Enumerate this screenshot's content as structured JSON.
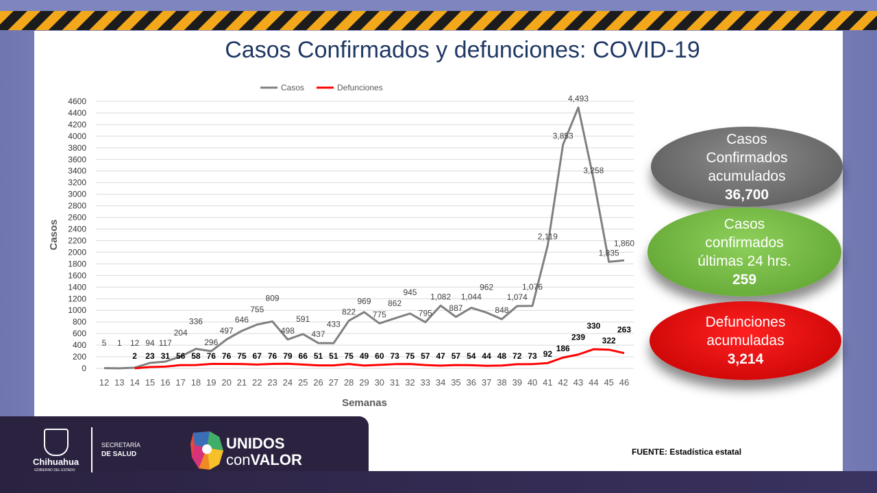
{
  "slide": {
    "title": "Casos Confirmados y defunciones: COVID-19",
    "fuente": "FUENTE: Estadística estatal"
  },
  "bubbles": {
    "acumulados": {
      "label1": "Casos",
      "label2": "Confirmados",
      "label3": "acumulados",
      "value": "36,700",
      "color": "#7f7f7f"
    },
    "ultimas": {
      "label1": "Casos",
      "label2": "confirmados",
      "label3": "últimas 24 hrs.",
      "value": "259",
      "color": "#70ad47"
    },
    "defunciones": {
      "label1": "Defunciones",
      "label2": "acumuladas",
      "value": "3,214",
      "color": "#ff0000"
    }
  },
  "footer": {
    "state": "Chihuahua",
    "gov": "GOBIERNO DEL ESTADO",
    "sec1": "SECRETARÍA",
    "sec2": "DE SALUD",
    "brand1": "UNIDOS",
    "brand2a": "con",
    "brand2b": "VALOR"
  },
  "chart_data": {
    "type": "line",
    "xlabel": "Semanas",
    "ylabel": "Casos",
    "ylim": [
      0,
      4600
    ],
    "ytick_step": 200,
    "grid": true,
    "legend": "top",
    "x": [
      12,
      13,
      14,
      15,
      16,
      17,
      18,
      19,
      20,
      21,
      22,
      23,
      24,
      25,
      26,
      27,
      28,
      29,
      30,
      31,
      32,
      33,
      34,
      35,
      36,
      37,
      38,
      39,
      40,
      41,
      42,
      43,
      44,
      45,
      46
    ],
    "series": [
      {
        "name": "Casos",
        "color": "#7f7f7f",
        "values": [
          5,
          1,
          12,
          94,
          117,
          204,
          336,
          296,
          497,
          646,
          755,
          809,
          498,
          591,
          437,
          433,
          822,
          969,
          775,
          862,
          945,
          795,
          1082,
          887,
          1044,
          962,
          848,
          1074,
          1076,
          2119,
          3853,
          4493,
          3258,
          1835,
          1860
        ]
      },
      {
        "name": "Defunciones",
        "color": "#ff0000",
        "values": [
          null,
          null,
          2,
          23,
          31,
          56,
          58,
          76,
          76,
          75,
          67,
          76,
          79,
          66,
          51,
          51,
          75,
          49,
          60,
          73,
          75,
          57,
          47,
          57,
          54,
          44,
          48,
          72,
          73,
          92,
          186,
          239,
          330,
          322,
          263
        ]
      }
    ]
  }
}
